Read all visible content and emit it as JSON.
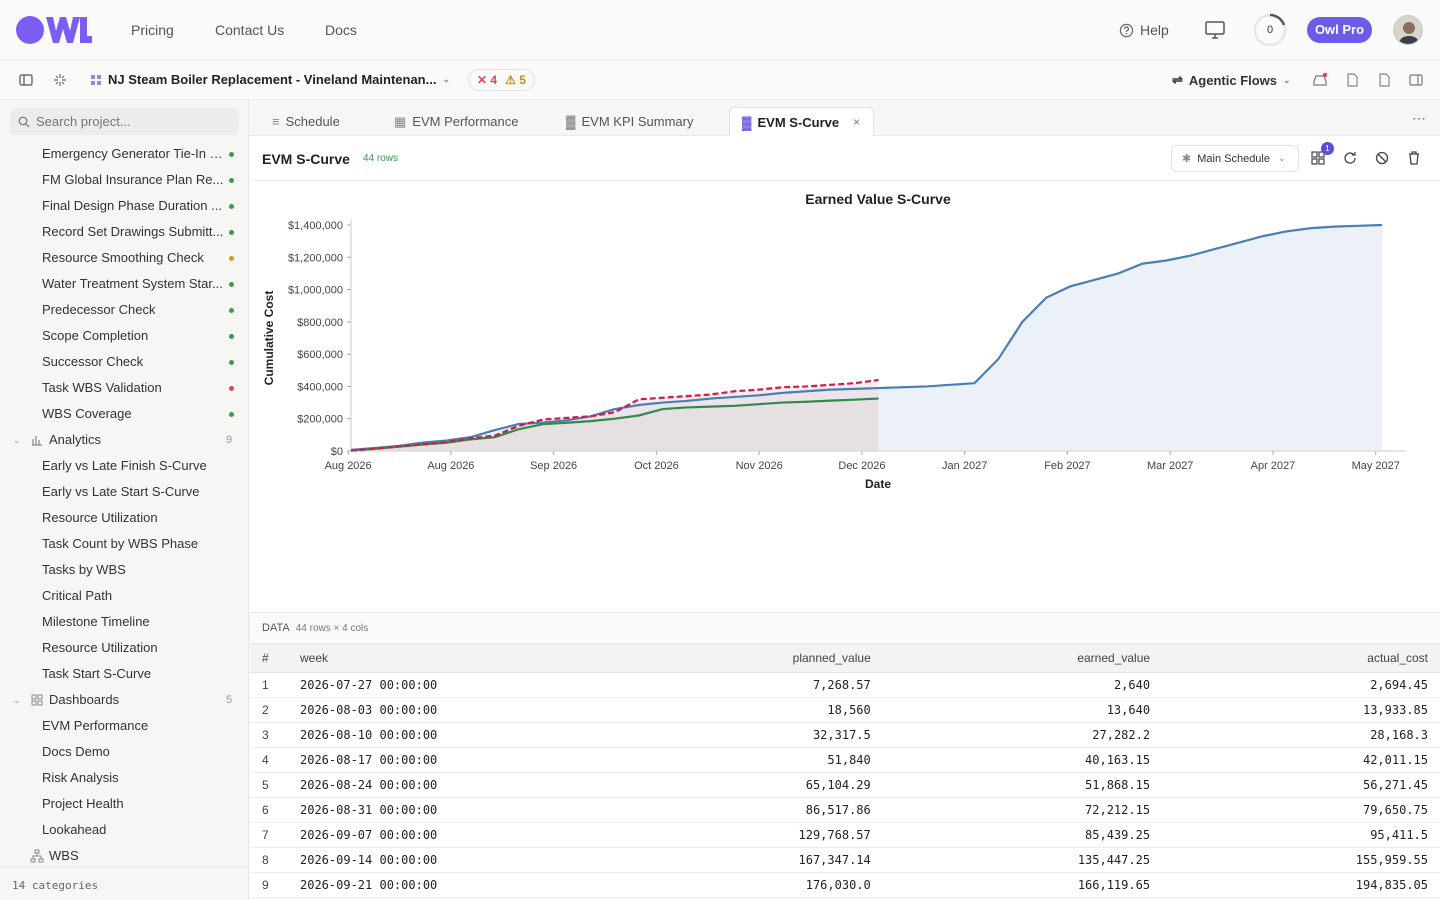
{
  "nav": {
    "pricing": "Pricing",
    "contact": "Contact Us",
    "docs": "Docs",
    "help": "Help",
    "counter": "0",
    "pro": "Owl Pro"
  },
  "toolbar": {
    "project_title": "NJ Steam Boiler Replacement - Vineland Maintenan...",
    "errors": "4",
    "warnings": "5",
    "agentic": "Agentic Flows"
  },
  "sidebar": {
    "search_placeholder": "Search project...",
    "checks": [
      {
        "label": "Emergency Generator Tie-In f...",
        "status": "#3a9a52"
      },
      {
        "label": "FM Global Insurance Plan Re...",
        "status": "#3a9a52"
      },
      {
        "label": "Final Design Phase Duration ...",
        "status": "#3a9a52"
      },
      {
        "label": "Record Set Drawings Submitt...",
        "status": "#3a9a52"
      },
      {
        "label": "Resource Smoothing Check",
        "status": "#e0902a"
      },
      {
        "label": "Water Treatment System Star...",
        "status": "#3a9a52"
      },
      {
        "label": "Predecessor Check",
        "status": "#3a9a52"
      },
      {
        "label": "Scope Completion",
        "status": "#3a9a52"
      },
      {
        "label": "Successor Check",
        "status": "#3a9a52"
      },
      {
        "label": "Task WBS Validation",
        "status": "#d9485a"
      },
      {
        "label": "WBS Coverage",
        "status": "#3a9a52"
      }
    ],
    "analytics": {
      "label": "Analytics",
      "count": "9",
      "items": [
        "Early vs Late Finish S-Curve",
        "Early vs Late Start S-Curve",
        "Resource Utilization",
        "Task Count by WBS Phase",
        "Tasks by WBS",
        "Critical Path",
        "Milestone Timeline",
        "Resource Utilization",
        "Task Start S-Curve"
      ]
    },
    "dashboards": {
      "label": "Dashboards",
      "count": "5",
      "items": [
        "EVM Performance",
        "Docs Demo",
        "Risk Analysis",
        "Project Health",
        "Lookahead"
      ]
    },
    "wbs": {
      "label": "WBS"
    },
    "footer": "14 categories"
  },
  "tabs": [
    {
      "label": "Schedule"
    },
    {
      "label": "EVM Performance"
    },
    {
      "label": "EVM KPI Summary"
    },
    {
      "label": "EVM S-Curve"
    }
  ],
  "main": {
    "title": "EVM S-Curve",
    "rows": "44 rows",
    "schedule": "Main Schedule",
    "badge": "1",
    "data_label": "DATA",
    "data_sub": "44 rows × 4 cols"
  },
  "chart_data": {
    "type": "area",
    "title": "Earned Value S-Curve",
    "xlabel": "Date",
    "ylabel": "Cumulative Cost",
    "ylim": [
      0,
      1400000
    ],
    "yticks": [
      "$0",
      "$200,000",
      "$400,000",
      "$600,000",
      "$800,000",
      "$1,000,000",
      "$1,200,000",
      "$1,400,000"
    ],
    "xticks": [
      "Aug 2026",
      "Aug 2026",
      "Sep 2026",
      "Oct 2026",
      "Nov 2026",
      "Dec 2026",
      "Jan 2027",
      "Feb 2027",
      "Mar 2027",
      "Apr 2027",
      "May 2027"
    ],
    "x_start": "2026-07-27",
    "x_end": "2027-05-31",
    "series": [
      {
        "color": "#4a7fb5",
        "dates": [
          "2026-07-27",
          "2026-08-03",
          "2026-08-10",
          "2026-08-17",
          "2026-08-24",
          "2026-08-31",
          "2026-09-07",
          "2026-09-14",
          "2026-09-21",
          "2026-09-28",
          "2026-10-05",
          "2026-10-12",
          "2026-10-19",
          "2026-10-26",
          "2026-11-02",
          "2026-11-09",
          "2026-11-16",
          "2026-11-23",
          "2026-11-30",
          "2026-12-07",
          "2026-12-14",
          "2026-12-21",
          "2026-12-28",
          "2027-01-04",
          "2027-01-11",
          "2027-01-18",
          "2027-01-25",
          "2027-02-01",
          "2027-02-08",
          "2027-02-15",
          "2027-02-22",
          "2027-03-01",
          "2027-03-08",
          "2027-03-15",
          "2027-03-22",
          "2027-03-29",
          "2027-04-05",
          "2027-04-12",
          "2027-04-19",
          "2027-04-26",
          "2027-05-03",
          "2027-05-10",
          "2027-05-17",
          "2027-05-24"
        ],
        "values": [
          7268.57,
          18560,
          32317.5,
          51840,
          65104.29,
          86517.86,
          129768.57,
          167347.14,
          176030,
          190000,
          215000,
          260000,
          285000,
          300000,
          310000,
          325000,
          335000,
          345000,
          360000,
          370000,
          380000,
          385000,
          390000,
          395000,
          400000,
          410000,
          420000,
          570000,
          800000,
          950000,
          1020000,
          1060000,
          1100000,
          1160000,
          1180000,
          1210000,
          1250000,
          1290000,
          1330000,
          1360000,
          1380000,
          1390000,
          1395000,
          1400000
        ]
      },
      {
        "color": "#2e8b4a",
        "dates": [
          "2026-07-27",
          "2026-08-03",
          "2026-08-10",
          "2026-08-17",
          "2026-08-24",
          "2026-08-31",
          "2026-09-07",
          "2026-09-14",
          "2026-09-21",
          "2026-09-28",
          "2026-10-05",
          "2026-10-12",
          "2026-10-19",
          "2026-10-26",
          "2026-11-02",
          "2026-11-09",
          "2026-11-16",
          "2026-11-23",
          "2026-11-30",
          "2026-12-07",
          "2026-12-14",
          "2026-12-21",
          "2026-12-28"
        ],
        "values": [
          2640,
          13640,
          27282.2,
          40163.15,
          51868.15,
          72212.15,
          85439.25,
          135447.25,
          166119.65,
          175000,
          185000,
          200000,
          220000,
          260000,
          270000,
          275000,
          280000,
          290000,
          300000,
          305000,
          312000,
          318000,
          325000
        ]
      },
      {
        "color": "#d01c4a",
        "dashed": true,
        "dates": [
          "2026-07-27",
          "2026-08-03",
          "2026-08-10",
          "2026-08-17",
          "2026-08-24",
          "2026-08-31",
          "2026-09-07",
          "2026-09-14",
          "2026-09-21",
          "2026-09-28",
          "2026-10-05",
          "2026-10-12",
          "2026-10-19",
          "2026-10-26",
          "2026-11-02",
          "2026-11-09",
          "2026-11-16",
          "2026-11-23",
          "2026-11-30",
          "2026-12-07",
          "2026-12-14",
          "2026-12-21",
          "2026-12-28"
        ],
        "values": [
          2694.45,
          13933.85,
          28168.3,
          42011.15,
          56271.45,
          79650.75,
          95411.5,
          155959.55,
          194835.05,
          205000,
          215000,
          240000,
          320000,
          330000,
          340000,
          350000,
          370000,
          380000,
          395000,
          400000,
          410000,
          420000,
          440000
        ]
      }
    ]
  },
  "table": {
    "columns": [
      "#",
      "week",
      "planned_value",
      "earned_value",
      "actual_cost"
    ],
    "rows": [
      [
        "1",
        "2026-07-27 00:00:00",
        "7,268.57",
        "2,640",
        "2,694.45"
      ],
      [
        "2",
        "2026-08-03 00:00:00",
        "18,560",
        "13,640",
        "13,933.85"
      ],
      [
        "3",
        "2026-08-10 00:00:00",
        "32,317.5",
        "27,282.2",
        "28,168.3"
      ],
      [
        "4",
        "2026-08-17 00:00:00",
        "51,840",
        "40,163.15",
        "42,011.15"
      ],
      [
        "5",
        "2026-08-24 00:00:00",
        "65,104.29",
        "51,868.15",
        "56,271.45"
      ],
      [
        "6",
        "2026-08-31 00:00:00",
        "86,517.86",
        "72,212.15",
        "79,650.75"
      ],
      [
        "7",
        "2026-09-07 00:00:00",
        "129,768.57",
        "85,439.25",
        "95,411.5"
      ],
      [
        "8",
        "2026-09-14 00:00:00",
        "167,347.14",
        "135,447.25",
        "155,959.55"
      ],
      [
        "9",
        "2026-09-21 00:00:00",
        "176,030.0",
        "166,119.65",
        "194,835.05"
      ]
    ]
  }
}
